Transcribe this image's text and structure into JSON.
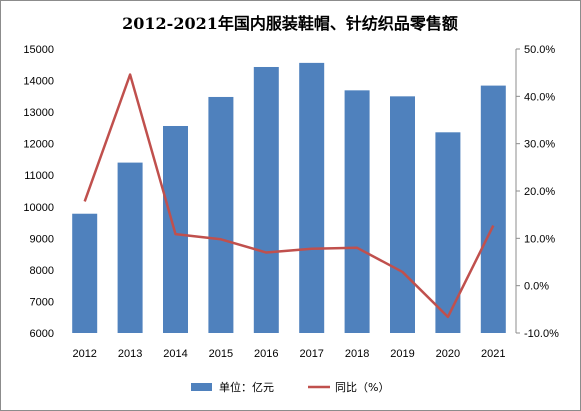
{
  "chart_data": {
    "type": "bar+line",
    "title": "2012-2021年国内服装鞋帽、针纺织品零售额",
    "categories": [
      "2012",
      "2013",
      "2014",
      "2015",
      "2016",
      "2017",
      "2018",
      "2019",
      "2020",
      "2021"
    ],
    "series": [
      {
        "name": "单位：亿元",
        "type": "bar",
        "axis": "left",
        "values": [
          9780,
          11400,
          12560,
          13480,
          14430,
          14560,
          13690,
          13500,
          12360,
          13840
        ]
      },
      {
        "name": "同比（%）",
        "type": "line",
        "axis": "right",
        "values": [
          17.8,
          44.6,
          10.9,
          9.8,
          7.0,
          7.8,
          8.0,
          2.9,
          -6.6,
          12.7
        ]
      }
    ],
    "left_axis": {
      "ylim": [
        6000,
        15000
      ],
      "ticks": [
        "6000",
        "7000",
        "8000",
        "9000",
        "10000",
        "11000",
        "12000",
        "13000",
        "14000",
        "15000"
      ]
    },
    "right_axis": {
      "ylim": [
        -10,
        50
      ],
      "ticks": [
        "-10.0%",
        "0.0%",
        "10.0%",
        "20.0%",
        "30.0%",
        "40.0%",
        "50.0%"
      ]
    },
    "legend_position": "bottom",
    "colors": {
      "bar": "#4F81BD",
      "line": "#C0504D"
    }
  }
}
